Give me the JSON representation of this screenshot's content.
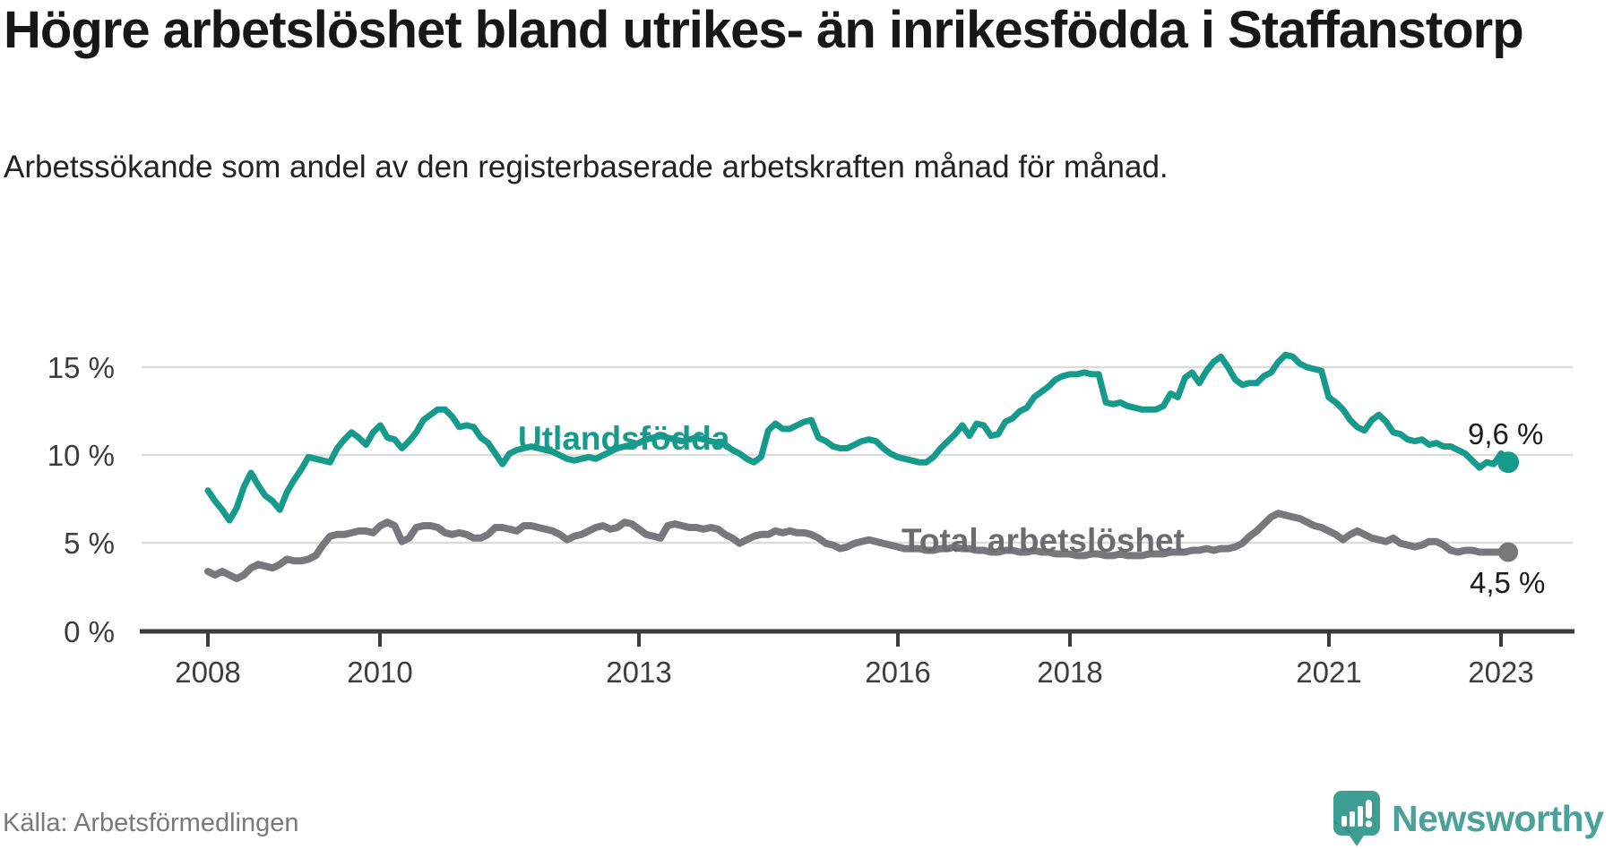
{
  "title": "Högre arbetslöshet bland utrikes- än inrikesfödda i Staffanstorp",
  "subtitle": "Arbetssökande som andel av den registerbaserade arbetskraften månad för månad.",
  "source": "Källa: Arbetsförmedlingen",
  "brand": {
    "name": "Newsworthy",
    "icon": "bar-chart-speech-bubble-icon",
    "text_color": "#4ba29a",
    "icon_color": "#3f9e94"
  },
  "colors": {
    "foreign_born_line": "#169a8c",
    "total_line": "#78777c",
    "total_label": "#6c6b70",
    "grid": "#dcdcdc",
    "axis": "#3b3b3b"
  },
  "chart_data": {
    "type": "line",
    "unit": "%",
    "frequency": "monthly",
    "x_start": "2008-01",
    "x_end": "2023-02",
    "ylim": [
      0,
      16.8
    ],
    "grid": "horizontal-only",
    "y_tick_labels": [
      "0 %",
      "5 %",
      "10 %",
      "15 %"
    ],
    "x_tick_labels": [
      "2008",
      "2010",
      "2013",
      "2016",
      "2018",
      "2021",
      "2023"
    ],
    "series": [
      {
        "name": "Utlandsfödda",
        "color": "#169a8c",
        "end_label": "9,6 %",
        "values": [
          8.0,
          7.4,
          6.9,
          6.3,
          7.0,
          8.2,
          9.0,
          8.3,
          7.7,
          7.4,
          6.9,
          7.9,
          8.6,
          9.2,
          9.9,
          9.8,
          9.7,
          9.6,
          10.4,
          10.9,
          11.3,
          11.0,
          10.6,
          11.3,
          11.7,
          11.0,
          10.9,
          10.4,
          10.8,
          11.3,
          12.0,
          12.3,
          12.6,
          12.6,
          12.2,
          11.6,
          11.7,
          11.6,
          11.0,
          10.7,
          10.1,
          9.5,
          10.1,
          10.3,
          10.4,
          10.5,
          10.4,
          10.3,
          10.2,
          10.0,
          9.8,
          9.7,
          9.8,
          9.9,
          9.8,
          10.0,
          10.2,
          10.4,
          10.5,
          10.6,
          10.7,
          10.9,
          11.0,
          11.1,
          11.0,
          10.9,
          10.8,
          10.9,
          11.0,
          10.9,
          10.8,
          10.7,
          10.6,
          10.3,
          10.1,
          9.8,
          9.6,
          9.9,
          11.4,
          11.8,
          11.5,
          11.5,
          11.7,
          11.9,
          12.0,
          11.0,
          10.8,
          10.5,
          10.4,
          10.4,
          10.6,
          10.8,
          10.9,
          10.8,
          10.4,
          10.1,
          9.9,
          9.8,
          9.7,
          9.6,
          9.6,
          9.9,
          10.4,
          10.8,
          11.2,
          11.7,
          11.1,
          11.8,
          11.7,
          11.1,
          11.2,
          11.9,
          12.1,
          12.5,
          12.7,
          13.3,
          13.6,
          13.9,
          14.3,
          14.5,
          14.6,
          14.6,
          14.7,
          14.6,
          14.6,
          13.0,
          12.9,
          13.0,
          12.8,
          12.7,
          12.6,
          12.6,
          12.6,
          12.8,
          13.5,
          13.3,
          14.4,
          14.7,
          14.1,
          14.8,
          15.3,
          15.6,
          15.0,
          14.3,
          14.0,
          14.1,
          14.1,
          14.5,
          14.7,
          15.3,
          15.7,
          15.6,
          15.2,
          15.0,
          14.9,
          14.8,
          13.3,
          13.0,
          12.6,
          12.0,
          11.6,
          11.4,
          12.0,
          12.3,
          11.9,
          11.3,
          11.2,
          10.9,
          10.8,
          10.9,
          10.6,
          10.7,
          10.5,
          10.5,
          10.3,
          10.1,
          9.7,
          9.3,
          9.6,
          9.5,
          10.1,
          9.6
        ]
      },
      {
        "name": "Total arbetslöshet",
        "color": "#78777c",
        "end_label": "4,5 %",
        "values": [
          3.4,
          3.2,
          3.4,
          3.2,
          3.0,
          3.2,
          3.6,
          3.8,
          3.7,
          3.6,
          3.8,
          4.1,
          4.0,
          4.0,
          4.1,
          4.3,
          4.9,
          5.4,
          5.5,
          5.5,
          5.6,
          5.7,
          5.7,
          5.6,
          6.0,
          6.2,
          6.0,
          5.1,
          5.3,
          5.9,
          6.0,
          6.0,
          5.9,
          5.6,
          5.5,
          5.6,
          5.5,
          5.3,
          5.3,
          5.5,
          5.9,
          5.9,
          5.8,
          5.7,
          6.0,
          6.0,
          5.9,
          5.8,
          5.7,
          5.5,
          5.2,
          5.4,
          5.5,
          5.7,
          5.9,
          6.0,
          5.8,
          5.9,
          6.2,
          6.1,
          5.8,
          5.5,
          5.4,
          5.3,
          6.0,
          6.1,
          6.0,
          5.9,
          5.9,
          5.8,
          5.9,
          5.8,
          5.5,
          5.3,
          5.0,
          5.2,
          5.4,
          5.5,
          5.5,
          5.7,
          5.6,
          5.7,
          5.6,
          5.6,
          5.5,
          5.3,
          5.0,
          4.9,
          4.7,
          4.8,
          5.0,
          5.1,
          5.2,
          5.1,
          5.0,
          4.9,
          4.8,
          4.7,
          4.7,
          4.7,
          4.6,
          4.6,
          4.7,
          4.7,
          4.8,
          4.7,
          4.7,
          4.6,
          4.6,
          4.5,
          4.5,
          4.6,
          4.6,
          4.5,
          4.5,
          4.6,
          4.5,
          4.5,
          4.4,
          4.4,
          4.4,
          4.3,
          4.3,
          4.4,
          4.4,
          4.3,
          4.3,
          4.4,
          4.3,
          4.3,
          4.3,
          4.4,
          4.4,
          4.4,
          4.5,
          4.5,
          4.5,
          4.6,
          4.6,
          4.7,
          4.6,
          4.7,
          4.7,
          4.8,
          5.0,
          5.4,
          5.7,
          6.1,
          6.5,
          6.7,
          6.6,
          6.5,
          6.4,
          6.2,
          6.0,
          5.9,
          5.7,
          5.5,
          5.2,
          5.5,
          5.7,
          5.5,
          5.3,
          5.2,
          5.1,
          5.3,
          5.0,
          4.9,
          4.8,
          4.9,
          5.1,
          5.1,
          4.9,
          4.6,
          4.5,
          4.6,
          4.6,
          4.5,
          4.5,
          4.5,
          4.5,
          4.5
        ]
      }
    ]
  }
}
